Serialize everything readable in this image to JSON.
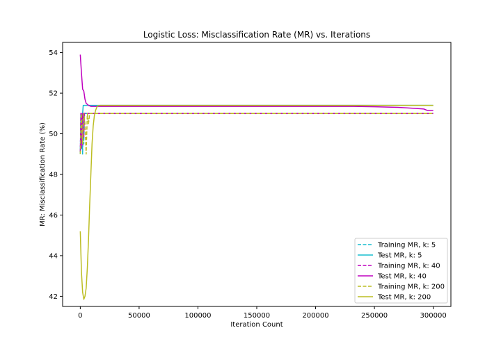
{
  "chart_data": {
    "type": "line",
    "title": "Logistic Loss: Misclassification Rate (MR) vs. Iterations",
    "xlabel": "Iteration Count",
    "ylabel": "MR: Misclassification Rate (%)",
    "xlim": [
      -15000,
      315000
    ],
    "ylim": [
      41.5,
      54.5
    ],
    "xticks": [
      0,
      50000,
      100000,
      150000,
      200000,
      250000,
      300000
    ],
    "xtick_labels": [
      "0",
      "50000",
      "100000",
      "150000",
      "200000",
      "250000",
      "300000"
    ],
    "yticks": [
      42,
      44,
      46,
      48,
      50,
      52,
      54
    ],
    "ytick_labels": [
      "42",
      "44",
      "46",
      "48",
      "50",
      "52",
      "54"
    ],
    "grid": false,
    "legend_position": "lower-right",
    "series": [
      {
        "name": "Training MR, k: 5",
        "color": "#17becf",
        "dash": true,
        "x": [
          0,
          500,
          1000,
          1500,
          2000,
          2500,
          3000,
          3500,
          4000,
          300000
        ],
        "y": [
          49.0,
          51.0,
          49.2,
          51.0,
          49.0,
          51.0,
          49.5,
          51.0,
          51.0,
          51.0
        ]
      },
      {
        "name": "Test MR, k: 5",
        "color": "#17becf",
        "dash": false,
        "x": [
          0,
          1000,
          2000,
          2500,
          3000,
          300000
        ],
        "y": [
          49.1,
          50.5,
          51.0,
          51.4,
          51.4,
          51.4
        ]
      },
      {
        "name": "Training MR, k: 40",
        "color": "#bf00bf",
        "dash": true,
        "x": [
          0,
          500,
          1000,
          1500,
          2000,
          2500,
          3000,
          3500,
          4000,
          300000
        ],
        "y": [
          49.1,
          51.0,
          49.3,
          51.0,
          49.4,
          51.0,
          49.8,
          51.0,
          51.0,
          51.0
        ]
      },
      {
        "name": "Test MR, k: 40",
        "color": "#bf00bf",
        "dash": false,
        "x": [
          0,
          1000,
          2000,
          3000,
          4000,
          5000,
          7000,
          9000,
          12000,
          20000,
          230000,
          250000,
          270000,
          285000,
          292000,
          295000,
          300000
        ],
        "y": [
          53.9,
          53.0,
          52.2,
          52.1,
          51.7,
          51.5,
          51.4,
          51.35,
          51.35,
          51.35,
          51.35,
          51.33,
          51.3,
          51.25,
          51.22,
          51.15,
          51.15
        ]
      },
      {
        "name": "Training MR, k: 200",
        "color": "#bcbd22",
        "dash": true,
        "x": [
          0,
          1000,
          2000,
          3000,
          4000,
          5000,
          6000,
          7000,
          8000,
          9000,
          300000
        ],
        "y": [
          49.0,
          51.0,
          49.5,
          51.0,
          50.5,
          49.0,
          51.0,
          50.5,
          51.0,
          51.0,
          51.0
        ]
      },
      {
        "name": "Test MR, k: 200",
        "color": "#bcbd22",
        "dash": false,
        "x": [
          0,
          1000,
          2000,
          3000,
          4000,
          5000,
          6000,
          7000,
          8000,
          9000,
          10000,
          11000,
          12000,
          13000,
          14000,
          15000,
          17000,
          20000,
          300000
        ],
        "y": [
          45.2,
          43.2,
          42.2,
          41.85,
          42.0,
          42.4,
          43.4,
          44.8,
          46.5,
          48.0,
          49.5,
          50.4,
          50.9,
          51.15,
          51.3,
          51.38,
          51.4,
          51.4,
          51.4
        ]
      }
    ]
  }
}
